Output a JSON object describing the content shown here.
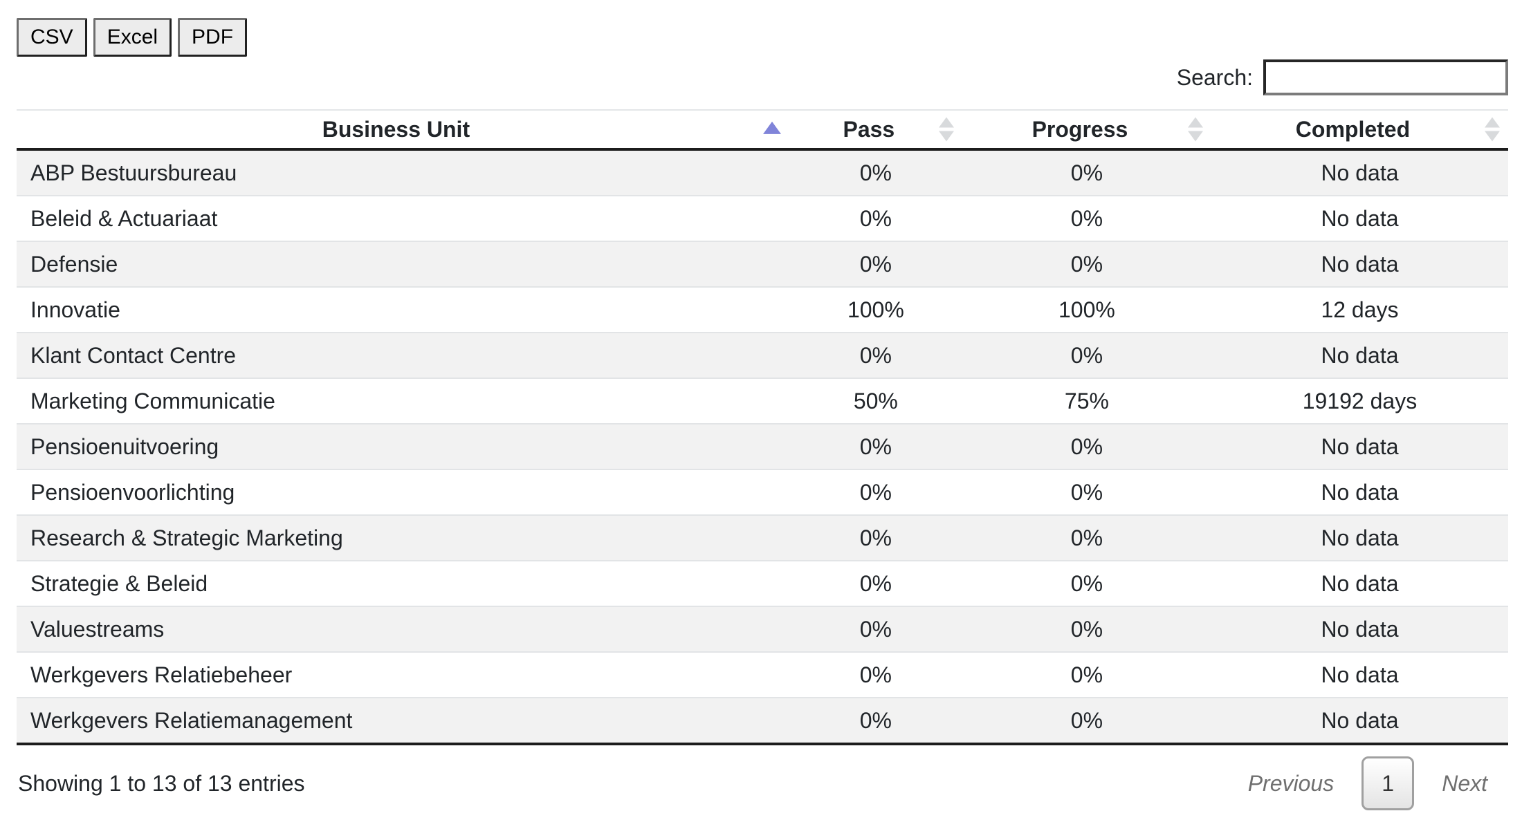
{
  "buttons": [
    {
      "label": "CSV"
    },
    {
      "label": "Excel"
    },
    {
      "label": "PDF"
    }
  ],
  "search": {
    "label": "Search:",
    "value": ""
  },
  "table": {
    "columns": [
      {
        "label": "Business Unit",
        "sort": "asc"
      },
      {
        "label": "Pass",
        "sort": "none"
      },
      {
        "label": "Progress",
        "sort": "none"
      },
      {
        "label": "Completed",
        "sort": "none"
      }
    ],
    "rows": [
      [
        "ABP Bestuursbureau",
        "0%",
        "0%",
        "No data"
      ],
      [
        "Beleid & Actuariaat",
        "0%",
        "0%",
        "No data"
      ],
      [
        "Defensie",
        "0%",
        "0%",
        "No data"
      ],
      [
        "Innovatie",
        "100%",
        "100%",
        "12 days"
      ],
      [
        "Klant Contact Centre",
        "0%",
        "0%",
        "No data"
      ],
      [
        "Marketing Communicatie",
        "50%",
        "75%",
        "19192 days"
      ],
      [
        "Pensioenuitvoering",
        "0%",
        "0%",
        "No data"
      ],
      [
        "Pensioenvoorlichting",
        "0%",
        "0%",
        "No data"
      ],
      [
        "Research & Strategic Marketing",
        "0%",
        "0%",
        "No data"
      ],
      [
        "Strategie & Beleid",
        "0%",
        "0%",
        "No data"
      ],
      [
        "Valuestreams",
        "0%",
        "0%",
        "No data"
      ],
      [
        "Werkgevers Relatiebeheer",
        "0%",
        "0%",
        "No data"
      ],
      [
        "Werkgevers Relatiemanagement",
        "0%",
        "0%",
        "No data"
      ]
    ]
  },
  "footer": {
    "info": "Showing 1 to 13 of 13 entries",
    "pagination": {
      "previous": "Previous",
      "page": "1",
      "next": "Next"
    }
  },
  "colors": {
    "sorted_arrow": "#8084d9",
    "unsorted_arrow": "#d8dadc",
    "stripe": "#f2f2f2"
  }
}
